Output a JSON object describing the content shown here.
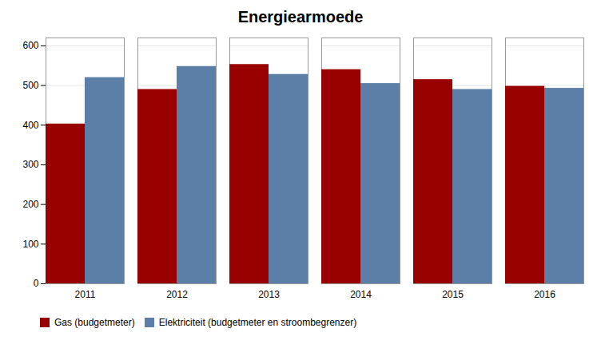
{
  "chart_data": {
    "type": "bar",
    "title": "Energiearmoede",
    "categories": [
      "2011",
      "2012",
      "2013",
      "2014",
      "2015",
      "2016"
    ],
    "series": [
      {
        "name": "Gas (budgetmeter)",
        "color": "#990000",
        "values": [
          403,
          490,
          553,
          540,
          515,
          498
        ]
      },
      {
        "name": "Elektriciteit (budgetmeter en stroombegrenzer)",
        "color": "#5b7fa6",
        "values": [
          520,
          548,
          528,
          505,
          490,
          493
        ]
      }
    ],
    "ylim": [
      0,
      620
    ],
    "yticks": [
      0,
      100,
      200,
      300,
      400,
      500,
      600
    ],
    "grid": true,
    "legend": "bottom"
  }
}
